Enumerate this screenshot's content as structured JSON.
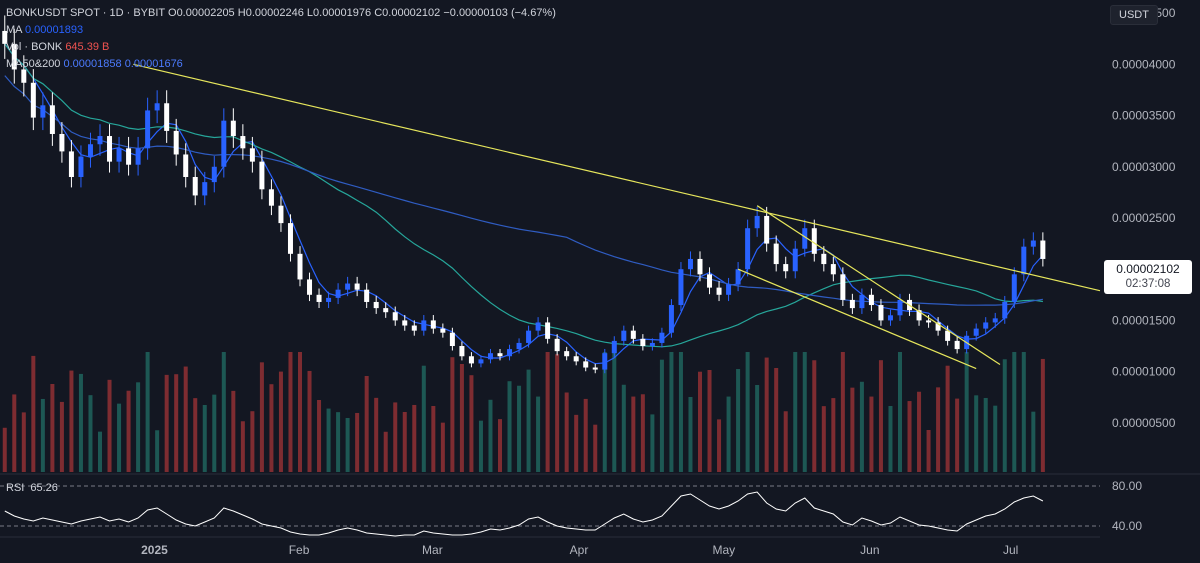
{
  "legend": {
    "symbol": "BONKUSDT SPOT · 1D · BYBIT",
    "o_label": "O",
    "o_value": "0.00002205",
    "h_label": "H",
    "h_value": "0.00002246",
    "l_label": "L",
    "l_value": "0.00001976",
    "c_label": "C",
    "c_value": "0.00002102",
    "change": "−0.00000103 (−4.67%)",
    "ma_label": "MA",
    "ma_value": "0.00001893",
    "vol_label": "Vol · BONK",
    "vol_value": "645.39 B",
    "ma50200_label": "MA50&200",
    "ma50_value": "0.00001858",
    "ma200_value": "0.00001676"
  },
  "currency_tag": "USDT",
  "last_price": {
    "price": "0.00002102",
    "countdown": "02:37:08"
  },
  "rsi": {
    "label": "RSI",
    "value": "65.26",
    "levels": [
      "80.00",
      "40.00"
    ]
  },
  "colors": {
    "bg": "#131722",
    "up": "#2962ff",
    "down": "#ffffff",
    "vol_up": "#1f5f5a",
    "vol_down": "#8b2f33",
    "ma_fast": "#2962ff",
    "ma50": "#26a69a",
    "ma200": "#2f5cc2",
    "trendline": "#e6e65c",
    "rsi": "#ffffff"
  },
  "chart_data": {
    "type": "candlestick",
    "y_tick_labels": [
      "0.00004500",
      "0.00004000",
      "0.00003500",
      "0.00003000",
      "0.00002500",
      "0.00001500",
      "0.00001000",
      "0.00000500"
    ],
    "y_ticks": [
      4.5e-05,
      4e-05,
      3.5e-05,
      3e-05,
      2.5e-05,
      1.5e-05,
      1e-05,
      5e-06
    ],
    "x_tick_labels": [
      "2025",
      "Feb",
      "Mar",
      "Apr",
      "May",
      "Jun",
      "Jul"
    ],
    "x_ticks": [
      "2025-01-01",
      "2025-02-01",
      "2025-03-01",
      "2025-04-01",
      "2025-05-01",
      "2025-06-01",
      "2025-07-01"
    ],
    "ylim": [
      2e-07,
      4.55e-05
    ],
    "xlim": [
      "2024-12-03",
      "2025-07-22"
    ],
    "closes": [
      [
        "2024-12-04",
        4.2e-05
      ],
      [
        "2024-12-06",
        3.95e-05
      ],
      [
        "2024-12-08",
        3.82e-05
      ],
      [
        "2024-12-10",
        3.48e-05
      ],
      [
        "2024-12-12",
        3.6e-05
      ],
      [
        "2024-12-14",
        3.32e-05
      ],
      [
        "2024-12-16",
        3.15e-05
      ],
      [
        "2024-12-18",
        2.9e-05
      ],
      [
        "2024-12-20",
        3.1e-05
      ],
      [
        "2024-12-22",
        3.22e-05
      ],
      [
        "2024-12-24",
        3.3e-05
      ],
      [
        "2024-12-26",
        3.05e-05
      ],
      [
        "2024-12-28",
        3.18e-05
      ],
      [
        "2024-12-30",
        3.02e-05
      ],
      [
        "2025-01-01",
        3.18e-05
      ],
      [
        "2025-01-03",
        3.55e-05
      ],
      [
        "2025-01-05",
        3.62e-05
      ],
      [
        "2025-01-07",
        3.35e-05
      ],
      [
        "2025-01-09",
        3.12e-05
      ],
      [
        "2025-01-11",
        2.9e-05
      ],
      [
        "2025-01-13",
        2.72e-05
      ],
      [
        "2025-01-15",
        2.85e-05
      ],
      [
        "2025-01-17",
        3e-05
      ],
      [
        "2025-01-19",
        3.45e-05
      ],
      [
        "2025-01-21",
        3.3e-05
      ],
      [
        "2025-01-23",
        3.18e-05
      ],
      [
        "2025-01-25",
        3.05e-05
      ],
      [
        "2025-01-27",
        2.78e-05
      ],
      [
        "2025-01-29",
        2.62e-05
      ],
      [
        "2025-01-31",
        2.45e-05
      ],
      [
        "2025-02-02",
        2.15e-05
      ],
      [
        "2025-02-04",
        1.9e-05
      ],
      [
        "2025-02-06",
        1.75e-05
      ],
      [
        "2025-02-08",
        1.68e-05
      ],
      [
        "2025-02-10",
        1.72e-05
      ],
      [
        "2025-02-12",
        1.8e-05
      ],
      [
        "2025-02-14",
        1.86e-05
      ],
      [
        "2025-02-16",
        1.8e-05
      ],
      [
        "2025-02-18",
        1.68e-05
      ],
      [
        "2025-02-20",
        1.62e-05
      ],
      [
        "2025-02-22",
        1.58e-05
      ],
      [
        "2025-02-24",
        1.5e-05
      ],
      [
        "2025-02-26",
        1.45e-05
      ],
      [
        "2025-02-28",
        1.4e-05
      ],
      [
        "2025-03-02",
        1.5e-05
      ],
      [
        "2025-03-04",
        1.42e-05
      ],
      [
        "2025-03-06",
        1.38e-05
      ],
      [
        "2025-03-08",
        1.25e-05
      ],
      [
        "2025-03-10",
        1.15e-05
      ],
      [
        "2025-03-12",
        1.08e-05
      ],
      [
        "2025-03-14",
        1.12e-05
      ],
      [
        "2025-03-16",
        1.18e-05
      ],
      [
        "2025-03-18",
        1.15e-05
      ],
      [
        "2025-03-20",
        1.22e-05
      ],
      [
        "2025-03-22",
        1.28e-05
      ],
      [
        "2025-03-24",
        1.4e-05
      ],
      [
        "2025-03-26",
        1.48e-05
      ],
      [
        "2025-03-28",
        1.32e-05
      ],
      [
        "2025-03-30",
        1.2e-05
      ],
      [
        "2025-04-01",
        1.15e-05
      ],
      [
        "2025-04-03",
        1.1e-05
      ],
      [
        "2025-04-05",
        1.04e-05
      ],
      [
        "2025-04-07",
        1.02e-05
      ],
      [
        "2025-04-09",
        1.18e-05
      ],
      [
        "2025-04-11",
        1.3e-05
      ],
      [
        "2025-04-13",
        1.4e-05
      ],
      [
        "2025-04-15",
        1.32e-05
      ],
      [
        "2025-04-17",
        1.25e-05
      ],
      [
        "2025-04-19",
        1.28e-05
      ],
      [
        "2025-04-21",
        1.38e-05
      ],
      [
        "2025-04-23",
        1.65e-05
      ],
      [
        "2025-04-25",
        2e-05
      ],
      [
        "2025-04-27",
        2.1e-05
      ],
      [
        "2025-04-29",
        1.95e-05
      ],
      [
        "2025-05-01",
        1.82e-05
      ],
      [
        "2025-05-03",
        1.75e-05
      ],
      [
        "2025-05-05",
        1.85e-05
      ],
      [
        "2025-05-07",
        2e-05
      ],
      [
        "2025-05-09",
        2.4e-05
      ],
      [
        "2025-05-11",
        2.52e-05
      ],
      [
        "2025-05-13",
        2.25e-05
      ],
      [
        "2025-05-15",
        2.05e-05
      ],
      [
        "2025-05-17",
        1.98e-05
      ],
      [
        "2025-05-19",
        2.2e-05
      ],
      [
        "2025-05-21",
        2.4e-05
      ],
      [
        "2025-05-23",
        2.15e-05
      ],
      [
        "2025-05-25",
        2.05e-05
      ],
      [
        "2025-05-27",
        1.95e-05
      ],
      [
        "2025-05-29",
        1.7e-05
      ],
      [
        "2025-05-31",
        1.62e-05
      ],
      [
        "2025-06-02",
        1.75e-05
      ],
      [
        "2025-06-04",
        1.65e-05
      ],
      [
        "2025-06-06",
        1.5e-05
      ],
      [
        "2025-06-08",
        1.55e-05
      ],
      [
        "2025-06-10",
        1.7e-05
      ],
      [
        "2025-06-12",
        1.6e-05
      ],
      [
        "2025-06-14",
        1.5e-05
      ],
      [
        "2025-06-16",
        1.48e-05
      ],
      [
        "2025-06-18",
        1.4e-05
      ],
      [
        "2025-06-20",
        1.3e-05
      ],
      [
        "2025-06-22",
        1.22e-05
      ],
      [
        "2025-06-24",
        1.35e-05
      ],
      [
        "2025-06-26",
        1.42e-05
      ],
      [
        "2025-06-28",
        1.48e-05
      ],
      [
        "2025-06-30",
        1.52e-05
      ],
      [
        "2025-07-02",
        1.68e-05
      ],
      [
        "2025-07-04",
        1.95e-05
      ],
      [
        "2025-07-06",
        2.22e-05
      ],
      [
        "2025-07-08",
        2.28e-05
      ],
      [
        "2025-07-10",
        2.1e-05
      ]
    ],
    "volume_ylim": [
      0,
      4e-05
    ],
    "rsi_ylim": [
      30,
      90
    ],
    "rsi_values": [
      55,
      50,
      47,
      45,
      48,
      46,
      44,
      42,
      45,
      47,
      49,
      45,
      47,
      44,
      48,
      56,
      58,
      52,
      46,
      42,
      40,
      44,
      48,
      58,
      55,
      51,
      47,
      42,
      40,
      38,
      34,
      32,
      31,
      31,
      33,
      36,
      38,
      36,
      33,
      32,
      31,
      30,
      31,
      31,
      35,
      33,
      32,
      31,
      31,
      32,
      34,
      37,
      36,
      38,
      41,
      47,
      49,
      44,
      40,
      38,
      37,
      36,
      36,
      42,
      48,
      52,
      47,
      44,
      46,
      50,
      60,
      70,
      72,
      66,
      60,
      57,
      60,
      65,
      72,
      74,
      63,
      57,
      55,
      63,
      68,
      58,
      55,
      52,
      44,
      41,
      48,
      45,
      41,
      43,
      49,
      45,
      41,
      40,
      38,
      36,
      35,
      42,
      46,
      50,
      52,
      57,
      64,
      68,
      70,
      65
    ],
    "lines": [
      "MA",
      "MA50",
      "MA200",
      "Trendline"
    ]
  }
}
